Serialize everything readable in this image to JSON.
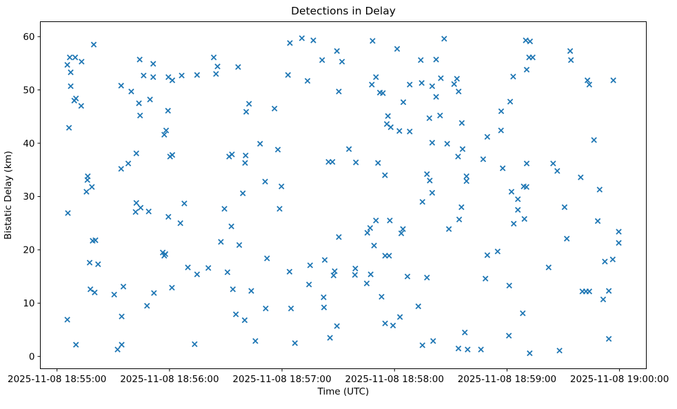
{
  "chart_data": {
    "type": "scatter",
    "title": "Detections in Delay",
    "xlabel": "Time (UTC)",
    "ylabel": "Bistatic Delay (km)",
    "marker": "x",
    "marker_color": "#1f77b4",
    "background_color": "#ffffff",
    "grid": false,
    "legend": "none",
    "x_unit": "seconds after 2025-11-08 18:55:00 UTC",
    "xlim_seconds": [
      -8.9,
      314.3
    ],
    "ylim": [
      -2.3,
      62.8
    ],
    "x_ticks": [
      {
        "t": 0,
        "label": "2025-11-08 18:55:00"
      },
      {
        "t": 60,
        "label": "2025-11-08 18:56:00"
      },
      {
        "t": 120,
        "label": "2025-11-08 18:57:00"
      },
      {
        "t": 180,
        "label": "2025-11-08 18:58:00"
      },
      {
        "t": 240,
        "label": "2025-11-08 18:59:00"
      },
      {
        "t": 300,
        "label": "2025-11-08 19:00:00"
      }
    ],
    "y_ticks": [
      0,
      10,
      20,
      30,
      40,
      50,
      60
    ],
    "points": [
      [
        5.5,
        6.9
      ],
      [
        5.5,
        54.7
      ],
      [
        5.8,
        26.9
      ],
      [
        6.4,
        42.9
      ],
      [
        6.8,
        56.1
      ],
      [
        7.3,
        50.7
      ],
      [
        7.3,
        53.3
      ],
      [
        9.2,
        48.0
      ],
      [
        9.7,
        56.1
      ],
      [
        10.1,
        2.2
      ],
      [
        10.1,
        48.4
      ],
      [
        12.9,
        47.0
      ],
      [
        13.1,
        55.3
      ],
      [
        15.7,
        30.9
      ],
      [
        16.2,
        33.1
      ],
      [
        16.4,
        33.8
      ],
      [
        17.4,
        17.6
      ],
      [
        17.8,
        12.6
      ],
      [
        18.6,
        31.8
      ],
      [
        19.0,
        21.7
      ],
      [
        19.6,
        58.5
      ],
      [
        20.1,
        12.0
      ],
      [
        20.5,
        21.8
      ],
      [
        21.9,
        17.3
      ],
      [
        30.5,
        11.6
      ],
      [
        32.3,
        1.3
      ],
      [
        34.2,
        35.2
      ],
      [
        34.2,
        50.8
      ],
      [
        34.5,
        2.2
      ],
      [
        34.5,
        7.5
      ],
      [
        35.4,
        13.1
      ],
      [
        38.0,
        36.2
      ],
      [
        39.6,
        49.7
      ],
      [
        41.9,
        27.1
      ],
      [
        42.3,
        28.8
      ],
      [
        42.3,
        38.1
      ],
      [
        43.7,
        47.5
      ],
      [
        44.1,
        55.7
      ],
      [
        44.3,
        45.2
      ],
      [
        44.6,
        27.9
      ],
      [
        46.2,
        52.7
      ],
      [
        48.0,
        9.5
      ],
      [
        48.9,
        27.2
      ],
      [
        49.6,
        48.2
      ],
      [
        51.3,
        52.4
      ],
      [
        51.3,
        54.9
      ],
      [
        51.7,
        11.9
      ],
      [
        56.4,
        19.5
      ],
      [
        57.2,
        18.9
      ],
      [
        57.2,
        41.6
      ],
      [
        57.8,
        19.2
      ],
      [
        58.2,
        42.4
      ],
      [
        59.2,
        46.1
      ],
      [
        59.4,
        26.2
      ],
      [
        59.4,
        52.4
      ],
      [
        60.3,
        37.5
      ],
      [
        61.3,
        12.9
      ],
      [
        61.5,
        37.8
      ],
      [
        61.5,
        51.8
      ],
      [
        65.8,
        25.0
      ],
      [
        66.5,
        52.7
      ],
      [
        67.9,
        28.7
      ],
      [
        69.8,
        16.7
      ],
      [
        73.4,
        2.3
      ],
      [
        74.7,
        15.4
      ],
      [
        74.7,
        52.8
      ],
      [
        80.7,
        16.6
      ],
      [
        83.6,
        56.1
      ],
      [
        84.8,
        53.0
      ],
      [
        85.6,
        54.4
      ],
      [
        87.4,
        21.5
      ],
      [
        89.3,
        27.7
      ],
      [
        90.9,
        15.8
      ],
      [
        91.8,
        37.5
      ],
      [
        93.0,
        24.4
      ],
      [
        93.3,
        37.9
      ],
      [
        93.8,
        12.6
      ],
      [
        95.4,
        7.9
      ],
      [
        96.6,
        54.3
      ],
      [
        97.2,
        20.9
      ],
      [
        99.1,
        30.6
      ],
      [
        100.1,
        6.8
      ],
      [
        100.3,
        36.3
      ],
      [
        100.6,
        37.7
      ],
      [
        100.9,
        45.9
      ],
      [
        102.4,
        47.4
      ],
      [
        103.6,
        12.3
      ],
      [
        105.8,
        2.9
      ],
      [
        108.3,
        39.9
      ],
      [
        111.0,
        32.8
      ],
      [
        111.3,
        9.0
      ],
      [
        112.0,
        18.4
      ],
      [
        116.0,
        46.5
      ],
      [
        117.8,
        38.8
      ],
      [
        118.7,
        27.7
      ],
      [
        119.7,
        31.9
      ],
      [
        123.2,
        52.8
      ],
      [
        124.0,
        15.9
      ],
      [
        124.2,
        58.8
      ],
      [
        124.8,
        9.0
      ],
      [
        126.9,
        2.5
      ],
      [
        130.6,
        59.7
      ],
      [
        133.6,
        51.7
      ],
      [
        134.4,
        13.5
      ],
      [
        135.0,
        17.1
      ],
      [
        136.7,
        59.3
      ],
      [
        141.4,
        55.6
      ],
      [
        142.2,
        11.1
      ],
      [
        142.4,
        9.2
      ],
      [
        142.8,
        18.1
      ],
      [
        144.8,
        36.5
      ],
      [
        145.6,
        3.5
      ],
      [
        146.9,
        36.5
      ],
      [
        147.5,
        15.2
      ],
      [
        148.1,
        16.0
      ],
      [
        149.3,
        5.7
      ],
      [
        149.3,
        57.3
      ],
      [
        150.3,
        22.4
      ],
      [
        150.3,
        49.7
      ],
      [
        152.0,
        55.3
      ],
      [
        155.7,
        38.9
      ],
      [
        158.9,
        15.3
      ],
      [
        159.1,
        16.5
      ],
      [
        159.4,
        36.4
      ],
      [
        165.2,
        13.7
      ],
      [
        165.5,
        23.2
      ],
      [
        167.0,
        24.1
      ],
      [
        167.3,
        15.4
      ],
      [
        167.9,
        51.0
      ],
      [
        168.3,
        59.2
      ],
      [
        169.1,
        20.8
      ],
      [
        170.1,
        25.5
      ],
      [
        170.1,
        52.4
      ],
      [
        171.2,
        36.3
      ],
      [
        172.2,
        49.5
      ],
      [
        173.1,
        11.2
      ],
      [
        173.8,
        49.4
      ],
      [
        174.9,
        34.0
      ],
      [
        175.0,
        6.2
      ],
      [
        175.0,
        18.9
      ],
      [
        175.9,
        43.6
      ],
      [
        176.5,
        45.1
      ],
      [
        177.1,
        18.9
      ],
      [
        177.5,
        25.5
      ],
      [
        178.0,
        43.0
      ],
      [
        179.2,
        5.8
      ],
      [
        181.4,
        57.7
      ],
      [
        182.6,
        42.3
      ],
      [
        182.9,
        7.4
      ],
      [
        183.6,
        23.1
      ],
      [
        184.5,
        23.9
      ],
      [
        184.7,
        47.7
      ],
      [
        186.9,
        15.0
      ],
      [
        188.1,
        42.2
      ],
      [
        188.1,
        51.0
      ],
      [
        192.7,
        9.4
      ],
      [
        194.0,
        55.6
      ],
      [
        194.5,
        51.3
      ],
      [
        194.9,
        2.1
      ],
      [
        194.9,
        29.0
      ],
      [
        197.3,
        14.8
      ],
      [
        197.3,
        34.2
      ],
      [
        198.6,
        44.7
      ],
      [
        198.8,
        33.0
      ],
      [
        200.1,
        40.1
      ],
      [
        200.1,
        50.7
      ],
      [
        200.1,
        30.7
      ],
      [
        200.6,
        2.9
      ],
      [
        202.2,
        48.7
      ],
      [
        202.2,
        55.7
      ],
      [
        204.3,
        45.2
      ],
      [
        204.7,
        52.2
      ],
      [
        206.5,
        59.6
      ],
      [
        208.1,
        39.9
      ],
      [
        209.0,
        23.9
      ],
      [
        211.8,
        51.1
      ],
      [
        213.3,
        52.1
      ],
      [
        213.9,
        37.5
      ],
      [
        214.1,
        1.5
      ],
      [
        214.2,
        49.7
      ],
      [
        214.5,
        25.7
      ],
      [
        215.7,
        28.0
      ],
      [
        215.9,
        43.8
      ],
      [
        216.3,
        38.9
      ],
      [
        217.5,
        4.5
      ],
      [
        218.4,
        32.9
      ],
      [
        218.4,
        33.8
      ],
      [
        219.0,
        1.3
      ],
      [
        226.1,
        1.3
      ],
      [
        227.3,
        37.0
      ],
      [
        228.5,
        14.6
      ],
      [
        229.5,
        19.0
      ],
      [
        229.5,
        41.2
      ],
      [
        235.0,
        19.7
      ],
      [
        236.8,
        42.4
      ],
      [
        236.9,
        46.0
      ],
      [
        237.7,
        35.3
      ],
      [
        241.0,
        3.9
      ],
      [
        241.2,
        13.3
      ],
      [
        241.7,
        47.8
      ],
      [
        242.4,
        30.9
      ],
      [
        243.3,
        52.5
      ],
      [
        243.6,
        24.9
      ],
      [
        245.8,
        27.5
      ],
      [
        245.8,
        29.5
      ],
      [
        248.4,
        8.1
      ],
      [
        248.9,
        31.9
      ],
      [
        249.3,
        25.8
      ],
      [
        250.0,
        59.3
      ],
      [
        250.4,
        31.8
      ],
      [
        250.5,
        36.2
      ],
      [
        250.5,
        53.8
      ],
      [
        251.8,
        56.1
      ],
      [
        252.1,
        0.6
      ],
      [
        252.3,
        59.1
      ],
      [
        253.7,
        56.1
      ],
      [
        262.2,
        16.7
      ],
      [
        264.6,
        36.2
      ],
      [
        266.8,
        34.8
      ],
      [
        268.0,
        1.1
      ],
      [
        270.7,
        28.0
      ],
      [
        271.9,
        22.1
      ],
      [
        273.7,
        57.3
      ],
      [
        274.1,
        55.6
      ],
      [
        279.3,
        33.6
      ],
      [
        280.2,
        12.2
      ],
      [
        282.1,
        12.2
      ],
      [
        282.9,
        51.8
      ],
      [
        283.9,
        12.2
      ],
      [
        283.9,
        51.0
      ],
      [
        286.4,
        40.6
      ],
      [
        288.4,
        25.4
      ],
      [
        289.4,
        31.3
      ],
      [
        291.3,
        10.7
      ],
      [
        292.2,
        17.8
      ],
      [
        294.3,
        3.3
      ],
      [
        294.3,
        12.3
      ],
      [
        296.4,
        18.2
      ],
      [
        296.7,
        51.8
      ],
      [
        299.6,
        21.3
      ],
      [
        299.6,
        23.4
      ]
    ]
  }
}
